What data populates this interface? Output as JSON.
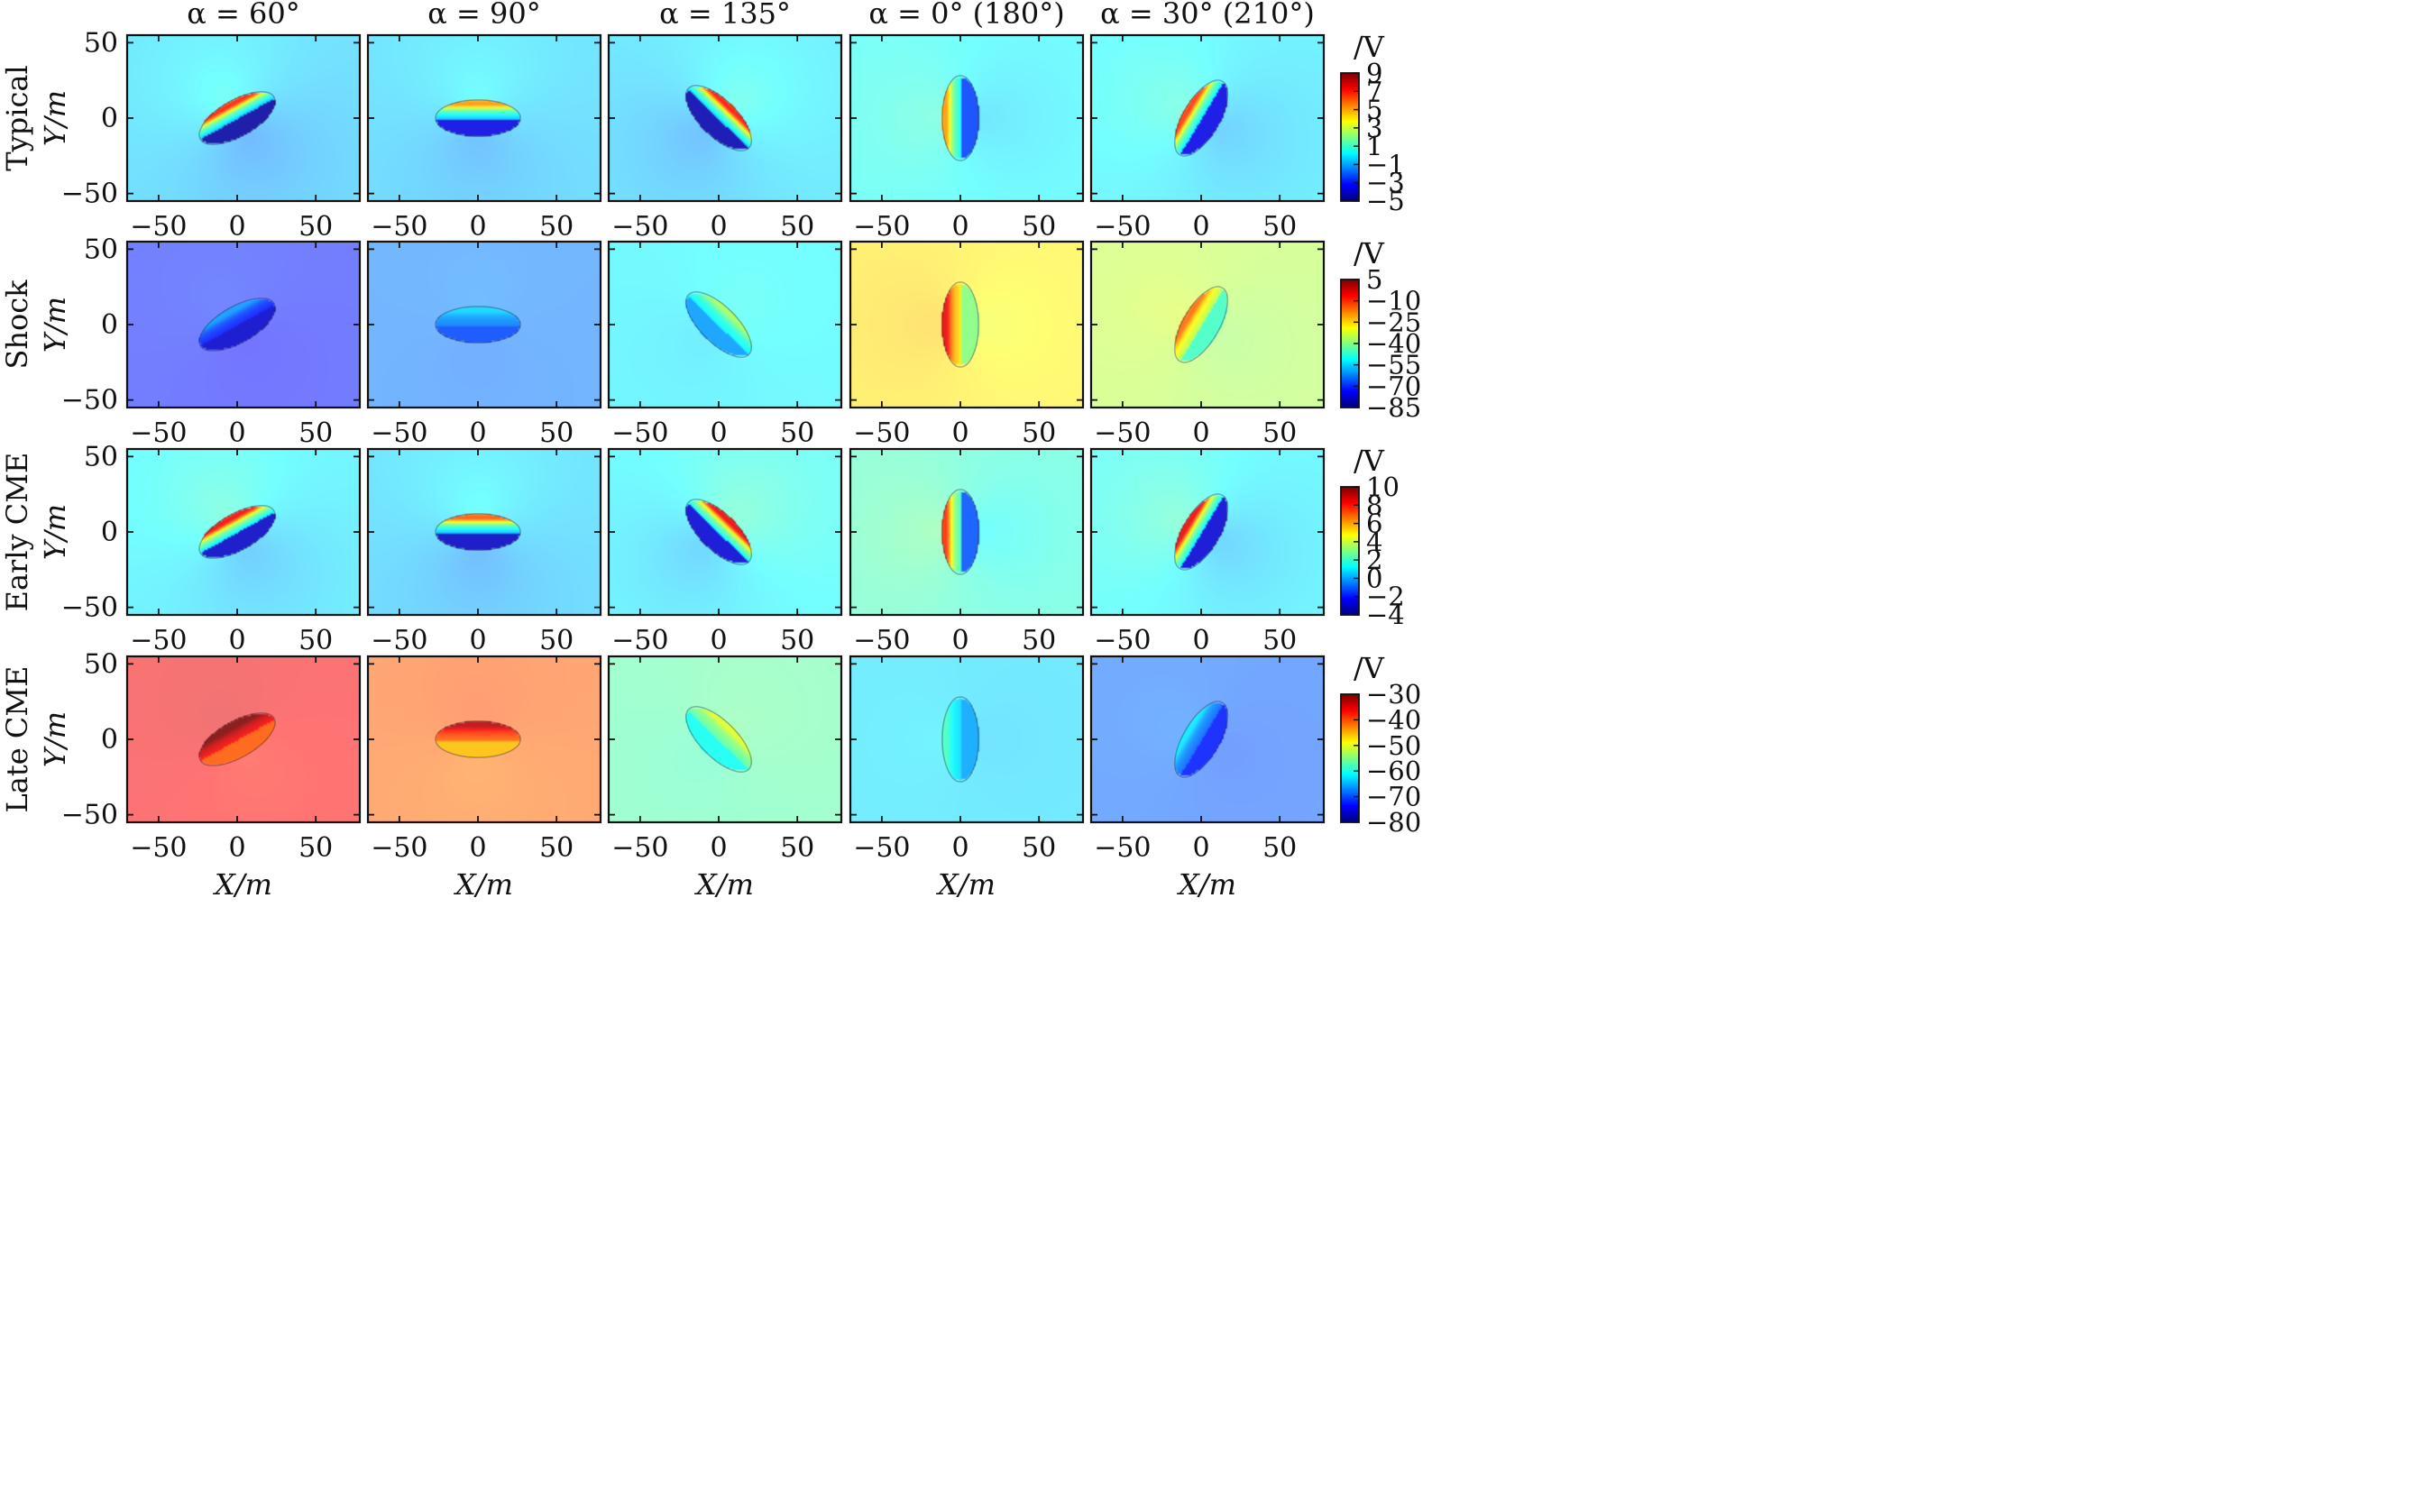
{
  "chart_data": {
    "type": "heatmap",
    "xlabel": "X/m",
    "ylabel": "Y/m",
    "xlim": [
      -70,
      78
    ],
    "ylim": [
      -55,
      55
    ],
    "xticks": [
      -50,
      0,
      50
    ],
    "yticks": [
      -50,
      0,
      50
    ],
    "ellipse": {
      "semi_major": 27,
      "semi_minor": 12
    },
    "columns": [
      {
        "title": "α = 60°",
        "angle": 60
      },
      {
        "title": "α = 90°",
        "angle": 90
      },
      {
        "title": "α = 135°",
        "angle": 135
      },
      {
        "title": "α = 0° (180°)",
        "angle": 0
      },
      {
        "title": "α = 30° (210°)",
        "angle": 30
      }
    ],
    "rows": [
      {
        "label": "Typical",
        "colorbar": {
          "unit": "/V",
          "range": [
            -5,
            9
          ],
          "ticks": [
            9,
            7,
            5,
            3,
            1,
            -1,
            -3,
            -5
          ]
        },
        "background": [
          -0.5,
          -0.5,
          -0.3,
          0.3,
          0.0
        ],
        "dipole": [
          4.5,
          3.5,
          4.5,
          3.0,
          4.0
        ]
      },
      {
        "label": "Shock",
        "colorbar": {
          "unit": "/V",
          "range": [
            -85,
            5
          ],
          "ticks": [
            5,
            -10,
            -25,
            -40,
            -55,
            -70,
            -85
          ]
        },
        "background": [
          -72,
          -63,
          -52,
          -27,
          -35
        ],
        "dipole": [
          7,
          5,
          9,
          14,
          12
        ]
      },
      {
        "label": "Early CME",
        "colorbar": {
          "unit": "/V",
          "range": [
            -4,
            10
          ],
          "ticks": [
            10,
            8,
            6,
            4,
            2,
            0,
            -2,
            -4
          ]
        },
        "background": [
          1.0,
          0.5,
          1.2,
          2.0,
          1.2
        ],
        "dipole": [
          4.5,
          4.0,
          4.5,
          3.5,
          4.5
        ]
      },
      {
        "label": "Late CME",
        "colorbar": {
          "unit": "/V",
          "range": [
            -80,
            -30
          ],
          "ticks": [
            -30,
            -40,
            -50,
            -60,
            -70,
            -80
          ]
        },
        "background": [
          -36,
          -41,
          -57,
          -63,
          -69
        ],
        "dipole": [
          5,
          5,
          4,
          3,
          4
        ]
      }
    ]
  }
}
